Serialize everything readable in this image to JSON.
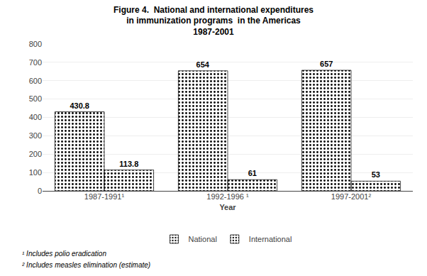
{
  "chart_data": {
    "type": "bar",
    "title": "Figure 4.  National and international expenditures\nin immunization programs  in the Americas\n1987-2001",
    "xlabel": "Year",
    "categories": [
      "1987-1991¹",
      "1992-1996 ¹",
      "1997-2001²"
    ],
    "series": [
      {
        "name": "National",
        "color": "#555555",
        "values": [
          430.8,
          654,
          657
        ]
      },
      {
        "name": "International",
        "color": "#999999",
        "values": [
          113.8,
          61,
          53
        ]
      }
    ],
    "data_labels": true,
    "ylim": [
      0,
      800
    ],
    "yticks": [
      0,
      100,
      200,
      300,
      400,
      500,
      600,
      700,
      800
    ],
    "grid": true,
    "legend": "bottom",
    "annotations": [
      "¹ Includes polio eradication",
      "² Includes measles elimination (estimate)"
    ]
  }
}
